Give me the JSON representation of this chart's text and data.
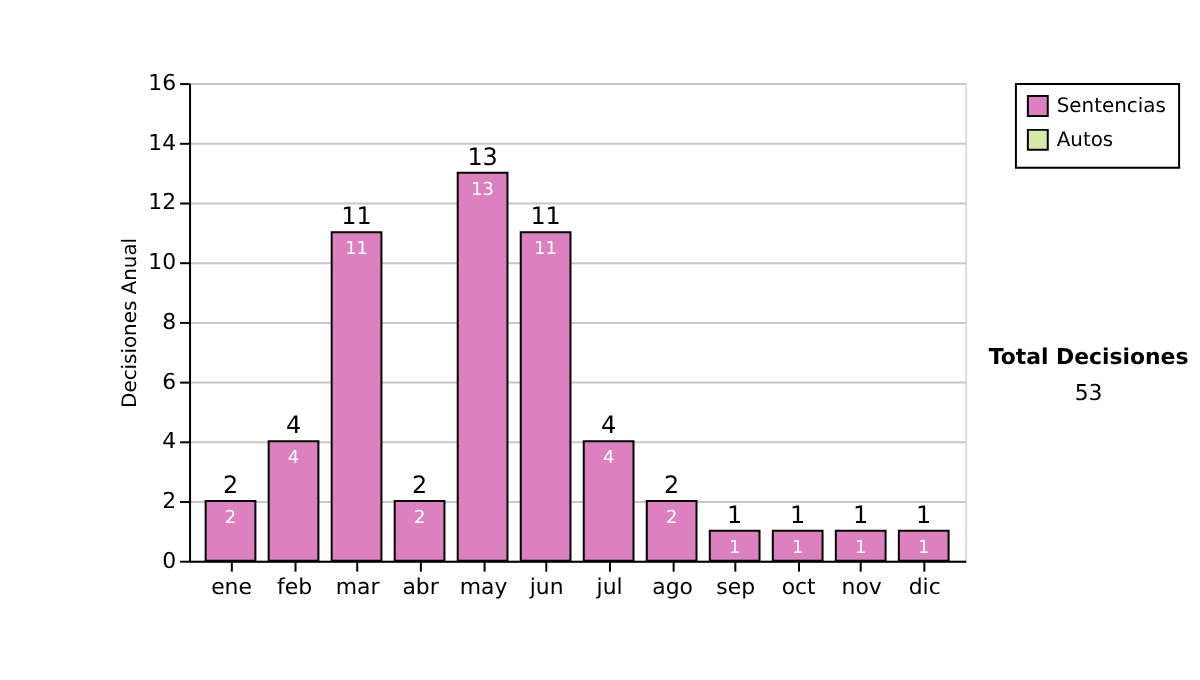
{
  "chart_data": {
    "type": "bar",
    "ylabel": "Decisiones Anual",
    "categories": [
      "ene",
      "feb",
      "mar",
      "abr",
      "may",
      "jun",
      "jul",
      "ago",
      "sep",
      "oct",
      "nov",
      "dic"
    ],
    "series": [
      {
        "name": "Sentencias",
        "color": "#dc80bf",
        "values": [
          2,
          4,
          11,
          2,
          13,
          11,
          4,
          2,
          1,
          1,
          1,
          1
        ]
      },
      {
        "name": "Autos",
        "color": "#d6eaa8",
        "values": [
          null,
          null,
          null,
          null,
          null,
          null,
          null,
          null,
          null,
          null,
          null,
          null
        ]
      }
    ],
    "stacked": true,
    "data_labels": true,
    "totals": [
      "2",
      "4",
      "11",
      "2",
      "13",
      "11",
      "4",
      "2",
      "1",
      "1",
      "1",
      "1"
    ],
    "ylim": [
      0,
      16
    ],
    "yticks": [
      0,
      2,
      4,
      6,
      8,
      10,
      12,
      14,
      16
    ],
    "grid": "y",
    "legend": "right",
    "annotations": [
      "Total Decisiones",
      "53"
    ]
  }
}
